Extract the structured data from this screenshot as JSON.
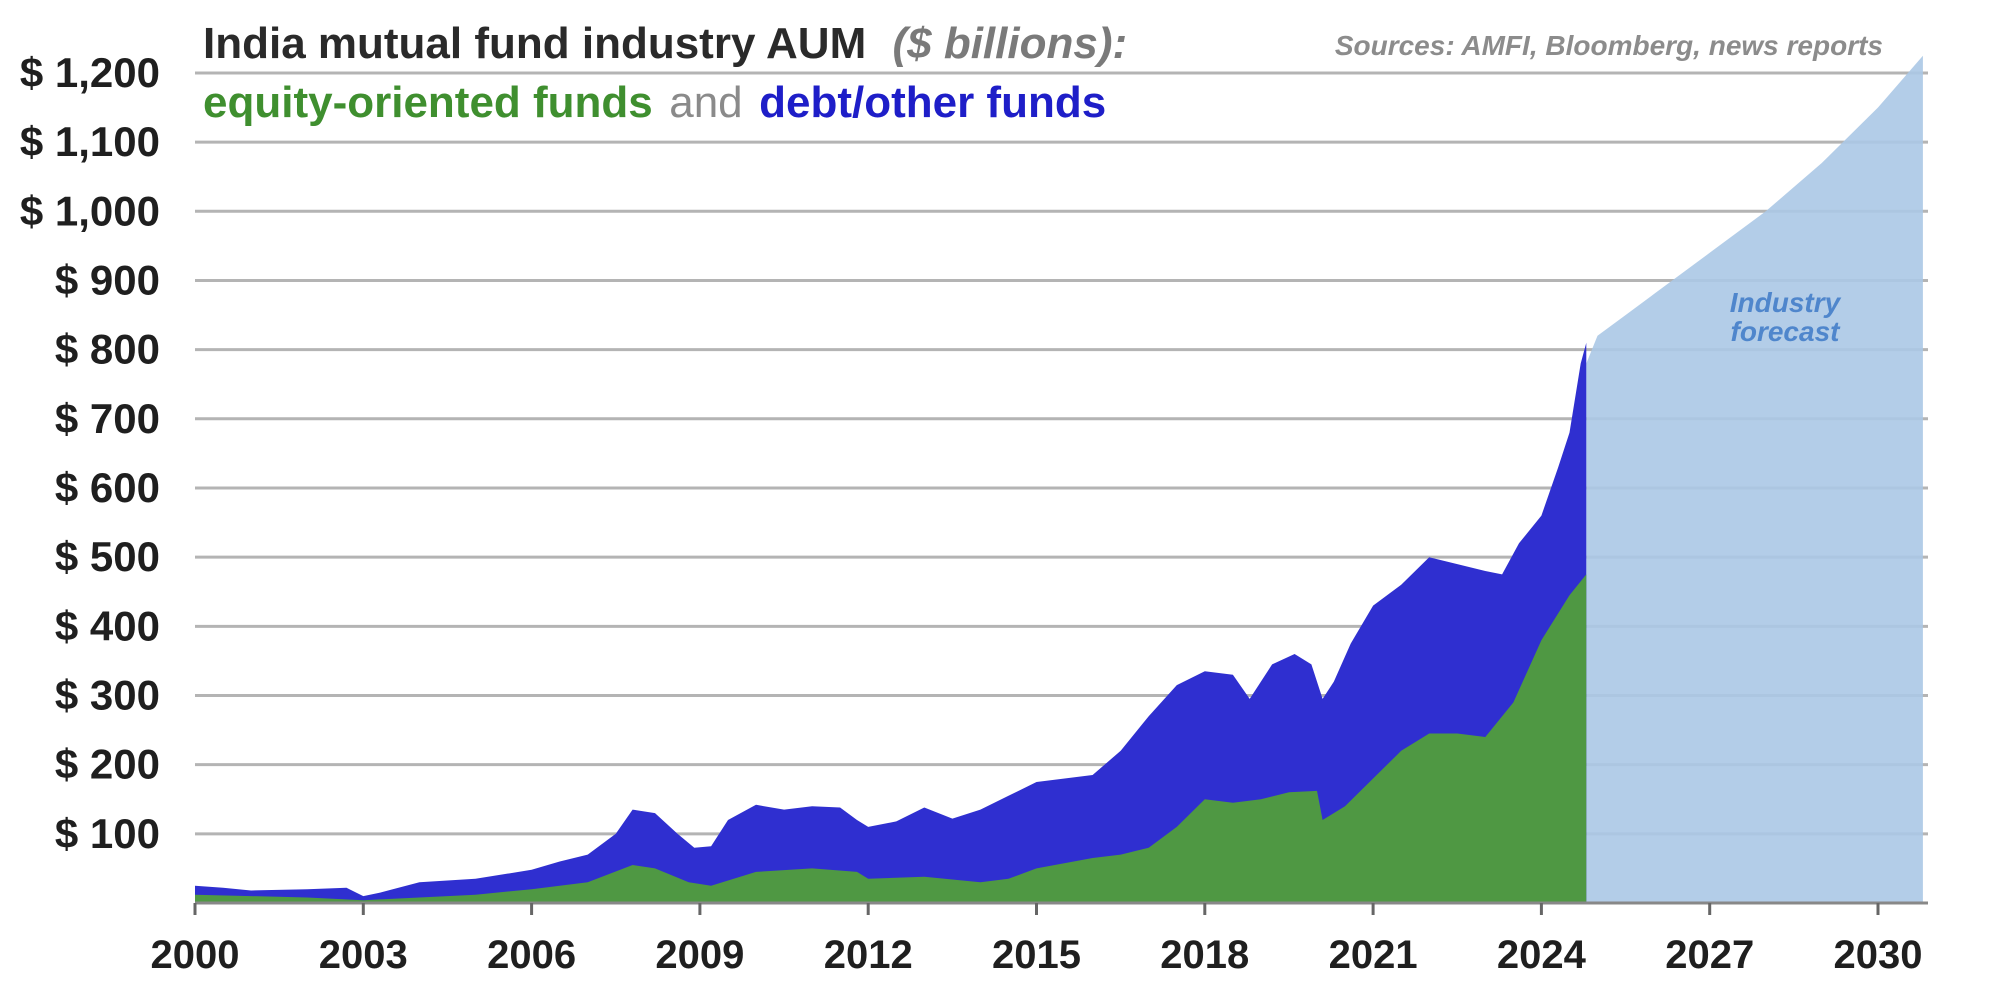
{
  "chart_data": {
    "type": "area",
    "title": "India mutual fund industry AUM",
    "title_unit": "($ billions):",
    "subtitle": {
      "equity": "equity-oriented funds",
      "and": "and",
      "debt": "debt/other funds"
    },
    "source": "Sources: AMFI, Bloomberg, news reports",
    "annotation": {
      "line1": "Industry",
      "line2": "forecast"
    },
    "xlabel": "",
    "ylabel": "",
    "xlim": [
      2000,
      2030.8
    ],
    "ylim": [
      0,
      1200
    ],
    "x_ticks": [
      "2000",
      "2003",
      "2006",
      "2009",
      "2012",
      "2015",
      "2018",
      "2021",
      "2024",
      "2027",
      "2030"
    ],
    "y_ticks": [
      "$ 100",
      "$ 200",
      "$ 300",
      "$ 400",
      "$ 500",
      "$ 600",
      "$ 700",
      "$ 800",
      "$ 900",
      "$ 1,000",
      "$ 1,100",
      "$ 1,200"
    ],
    "grid": true,
    "colors": {
      "equity": "#4f9843",
      "debt": "#2f2fd0",
      "forecast": "#abc8e6",
      "annotation": "#4f86cc",
      "grid": "#b4b4b4",
      "subtitle_equity": "#3f8f2f",
      "subtitle_and": "#8a8a8a",
      "subtitle_debt": "#1e1ec8"
    },
    "series": [
      {
        "name": "Total AUM (equity + debt/other)",
        "x": [
          2000,
          2000.5,
          2001,
          2002,
          2002.7,
          2003,
          2003.3,
          2004,
          2005,
          2006,
          2006.5,
          2007,
          2007.5,
          2007.8,
          2008.2,
          2008.6,
          2008.9,
          2009.2,
          2009.5,
          2010,
          2010.5,
          2011,
          2011.5,
          2011.8,
          2012,
          2012.5,
          2013,
          2013.5,
          2014,
          2014.5,
          2015,
          2015.5,
          2016,
          2016.5,
          2017,
          2017.5,
          2018,
          2018.5,
          2018.8,
          2019.2,
          2019.6,
          2019.9,
          2020.1,
          2020.3,
          2020.6,
          2021,
          2021.5,
          2022,
          2022.5,
          2023,
          2023.3,
          2023.6,
          2024,
          2024.3,
          2024.5,
          2024.7,
          2024.8
        ],
        "values": [
          25,
          22,
          18,
          20,
          22,
          10,
          15,
          30,
          35,
          48,
          60,
          70,
          100,
          135,
          130,
          100,
          80,
          82,
          120,
          142,
          135,
          140,
          138,
          120,
          110,
          118,
          138,
          122,
          135,
          155,
          175,
          180,
          185,
          220,
          270,
          315,
          335,
          330,
          295,
          345,
          360,
          345,
          295,
          320,
          375,
          430,
          460,
          500,
          490,
          480,
          475,
          520,
          560,
          630,
          680,
          780,
          810
        ]
      },
      {
        "name": "equity-oriented funds",
        "x": [
          2000,
          2001,
          2002,
          2003,
          2004,
          2005,
          2006,
          2007,
          2007.8,
          2008.2,
          2008.8,
          2009.2,
          2010,
          2011,
          2011.8,
          2012,
          2013,
          2014,
          2014.5,
          2015,
          2016,
          2016.5,
          2017,
          2017.5,
          2018,
          2018.5,
          2019,
          2019.5,
          2020,
          2020.1,
          2020.5,
          2021,
          2021.5,
          2022,
          2022.5,
          2023,
          2023.5,
          2024,
          2024.5,
          2024.8
        ],
        "values": [
          12,
          10,
          8,
          4,
          8,
          12,
          20,
          30,
          55,
          50,
          30,
          25,
          45,
          50,
          45,
          35,
          38,
          30,
          35,
          50,
          65,
          70,
          80,
          110,
          150,
          145,
          150,
          160,
          162,
          120,
          140,
          180,
          220,
          245,
          245,
          240,
          290,
          380,
          445,
          475
        ]
      },
      {
        "name": "Industry forecast",
        "x": [
          2024.8,
          2025,
          2025.5,
          2026,
          2027,
          2028,
          2029,
          2030,
          2030.8
        ],
        "values": [
          780,
          820,
          850,
          880,
          940,
          1000,
          1070,
          1150,
          1225
        ]
      }
    ]
  }
}
